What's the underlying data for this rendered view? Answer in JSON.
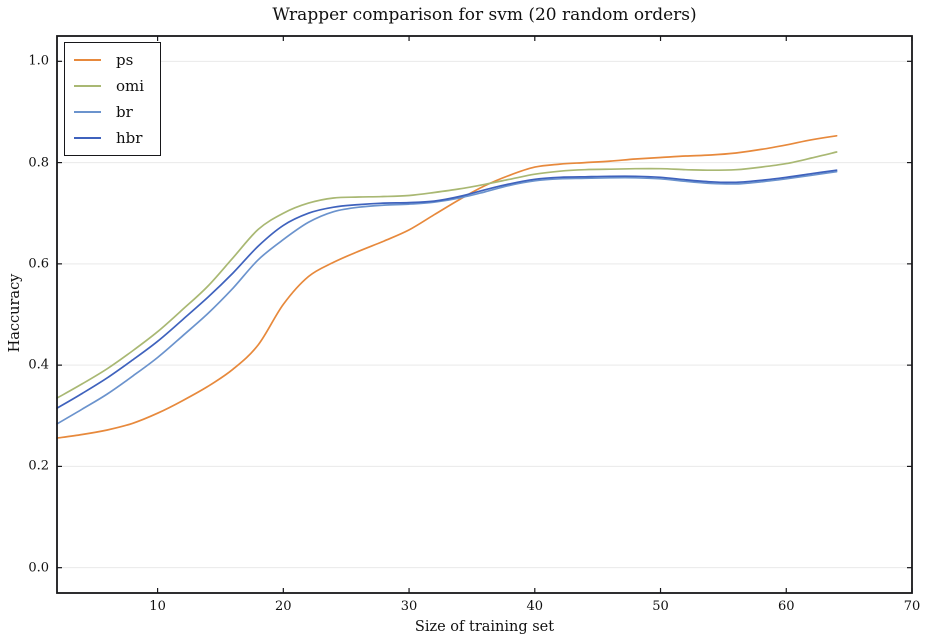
{
  "colors": {
    "background": "#ffffff",
    "spine": "#17171a",
    "grid": "#e9e9e9",
    "text": "#111111"
  },
  "chart_data": {
    "type": "line",
    "title": "Wrapper comparison for svm (20 random orders)",
    "xlabel": "Size of training set",
    "ylabel": "Haccuracy",
    "xlim": [
      2,
      70
    ],
    "ylim": [
      -0.05,
      1.05
    ],
    "grid": "horizontal-only",
    "legend_position": "upper-left",
    "xticks": {
      "values": [
        10,
        20,
        30,
        40,
        50,
        60,
        70
      ],
      "labels": [
        "10",
        "20",
        "30",
        "40",
        "50",
        "60",
        "70"
      ]
    },
    "yticks": {
      "values": [
        0.0,
        0.2,
        0.4,
        0.6,
        0.8,
        1.0
      ],
      "labels": [
        "0.0",
        "0.2",
        "0.4",
        "0.6",
        "0.8",
        "1.0"
      ]
    },
    "x": [
      2,
      4,
      6,
      8,
      10,
      12,
      14,
      16,
      18,
      20,
      22,
      24,
      26,
      28,
      30,
      32,
      34,
      36,
      38,
      40,
      42,
      44,
      46,
      48,
      50,
      52,
      54,
      56,
      58,
      60,
      62,
      64
    ],
    "series": [
      {
        "name": "ps",
        "color": "#e7893c",
        "y": [
          0.256,
          0.263,
          0.272,
          0.285,
          0.305,
          0.33,
          0.358,
          0.392,
          0.44,
          0.52,
          0.575,
          0.603,
          0.625,
          0.645,
          0.667,
          0.697,
          0.727,
          0.754,
          0.775,
          0.791,
          0.797,
          0.8,
          0.803,
          0.807,
          0.81,
          0.813,
          0.815,
          0.819,
          0.826,
          0.835,
          0.845,
          0.853
        ]
      },
      {
        "name": "omi",
        "color": "#a9b873",
        "y": [
          0.335,
          0.363,
          0.393,
          0.428,
          0.466,
          0.51,
          0.556,
          0.612,
          0.668,
          0.7,
          0.72,
          0.73,
          0.732,
          0.733,
          0.735,
          0.741,
          0.748,
          0.757,
          0.767,
          0.777,
          0.783,
          0.786,
          0.787,
          0.788,
          0.788,
          0.786,
          0.785,
          0.786,
          0.791,
          0.798,
          0.809,
          0.821
        ]
      },
      {
        "name": "br",
        "color": "#6b93cd",
        "y": [
          0.284,
          0.313,
          0.343,
          0.378,
          0.415,
          0.458,
          0.502,
          0.552,
          0.608,
          0.648,
          0.682,
          0.703,
          0.712,
          0.716,
          0.718,
          0.722,
          0.73,
          0.742,
          0.755,
          0.764,
          0.768,
          0.769,
          0.77,
          0.77,
          0.768,
          0.763,
          0.759,
          0.758,
          0.762,
          0.768,
          0.775,
          0.782
        ]
      },
      {
        "name": "hbr",
        "color": "#3f62bd",
        "y": [
          0.315,
          0.344,
          0.375,
          0.41,
          0.447,
          0.49,
          0.534,
          0.582,
          0.635,
          0.676,
          0.7,
          0.712,
          0.717,
          0.72,
          0.721,
          0.724,
          0.733,
          0.746,
          0.758,
          0.767,
          0.771,
          0.772,
          0.773,
          0.773,
          0.771,
          0.766,
          0.762,
          0.761,
          0.765,
          0.771,
          0.778,
          0.785
        ]
      }
    ]
  }
}
